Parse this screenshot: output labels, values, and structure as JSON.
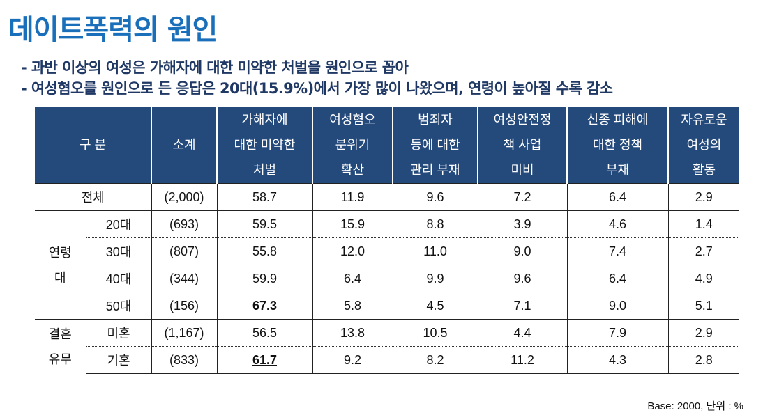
{
  "title": "데이트폭력의 원인",
  "bullets": [
    "- 과반 이상의 여성은 가해자에 대한 미약한 처벌을 원인으로 꼽아",
    "- 여성혐오를 원인으로 든 응답은 20대(15.9%)에서 가장 많이 나왔으며, 연령이 높아질 수록 감소"
  ],
  "table": {
    "headers": [
      "구 분",
      "소계",
      "가해자에 대한 미약한 처벌",
      "여성혐오 분위기 확산",
      "범죄자 등에 대한 관리 부재",
      "여성안전정책 사업 미비",
      "신종 피해에 대한 정책 부재",
      "자유로운 여성의 활동"
    ],
    "header_lines": [
      [
        "구 분"
      ],
      [
        "소계"
      ],
      [
        "가해자에",
        "대한 미약한",
        "처벌"
      ],
      [
        "여성혐오",
        "분위기",
        "확산"
      ],
      [
        "범죄자",
        "등에 대한",
        "관리 부재"
      ],
      [
        "여성안전정",
        "책 사업",
        "미비"
      ],
      [
        "신종 피해에",
        "대한 정책",
        "부재"
      ],
      [
        "자유로운",
        "여성의",
        "활동"
      ]
    ],
    "groups": [
      "연령\n대",
      "결혼\n유무"
    ],
    "group_lines": [
      [
        "연령",
        "대"
      ],
      [
        "결혼",
        "유무"
      ]
    ],
    "rows": [
      {
        "label": "전체",
        "n": "(2,000)",
        "values": [
          "58.7",
          "11.9",
          "9.6",
          "7.2",
          "6.4",
          "2.9"
        ]
      },
      {
        "label": "20대",
        "n": "(693)",
        "values": [
          "59.5",
          "15.9",
          "8.8",
          "3.9",
          "4.6",
          "1.4"
        ]
      },
      {
        "label": "30대",
        "n": "(807)",
        "values": [
          "55.8",
          "12.0",
          "11.0",
          "9.0",
          "7.4",
          "2.7"
        ]
      },
      {
        "label": "40대",
        "n": "(344)",
        "values": [
          "59.9",
          "6.4",
          "9.9",
          "9.6",
          "6.4",
          "4.9"
        ]
      },
      {
        "label": "50대",
        "n": "(156)",
        "values": [
          "67.3",
          "5.8",
          "4.5",
          "7.1",
          "9.0",
          "5.1"
        ],
        "highlight": "67.3"
      },
      {
        "label": "미혼",
        "n": "(1,167)",
        "values": [
          "56.5",
          "13.8",
          "10.5",
          "4.4",
          "7.9",
          "2.9"
        ]
      },
      {
        "label": "기혼",
        "n": "(833)",
        "values": [
          "61.7",
          "9.2",
          "8.2",
          "11.2",
          "4.3",
          "2.8"
        ],
        "highlight": "61.7"
      }
    ]
  },
  "footnote": "Base: 2000,   단위 : %",
  "colors": {
    "title": "#1a6fba",
    "bullets": "#1f3864",
    "header_bg": "#244a7c"
  }
}
